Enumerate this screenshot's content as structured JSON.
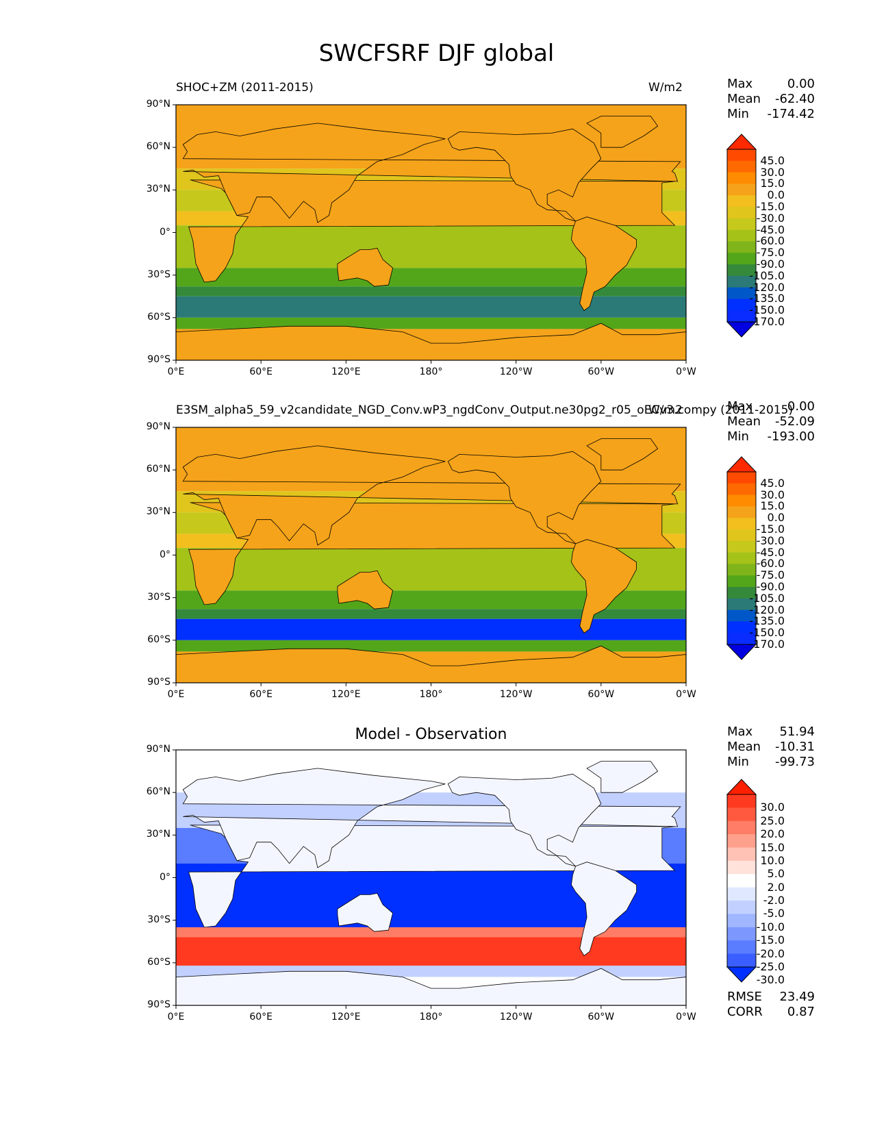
{
  "figure": {
    "title": "SWCFSRF DJF global"
  },
  "chart_data": [
    {
      "type": "heatmap",
      "title_left": "SHOC+ZM (2011-2015)",
      "title_right": "W/m2",
      "stats": {
        "max_label": "Max",
        "max": "0.00",
        "mean_label": "Mean",
        "mean": "-62.40",
        "min_label": "Min",
        "min": "-174.42"
      },
      "x_ticks": [
        "0°E",
        "60°E",
        "120°E",
        "180°",
        "120°W",
        "60°W",
        "0°W"
      ],
      "y_ticks": [
        "90°N",
        "60°N",
        "30°N",
        "0°",
        "30°S",
        "60°S",
        "90°S"
      ],
      "xlim": [
        0,
        360
      ],
      "ylim": [
        -90,
        90
      ],
      "colorbar_levels": [
        "45.0",
        "30.0",
        "15.0",
        "0.0",
        "-15.0",
        "-30.0",
        "-45.0",
        "-60.0",
        "-75.0",
        "-90.0",
        "-105.0",
        "-120.0",
        "-135.0",
        "-150.0",
        "-170.0"
      ],
      "colorbar_colors": [
        "#ff2a00",
        "#ff4a00",
        "#ff6a00",
        "#ff8c00",
        "#f5a31a",
        "#f2bf1f",
        "#e0c51d",
        "#c6c81c",
        "#a5c219",
        "#7fb51a",
        "#53a61a",
        "#348a3a",
        "#2b7a77",
        "#0058c8",
        "#0030ff",
        "#0a2cff",
        "#0000e0"
      ]
    },
    {
      "type": "heatmap",
      "title_left": "E3SM_alpha5_59_v2candidate_NGD_Conv.wP3_ngdConv_Output.ne30pg2_r05_oECv3.compy (2011-2015)",
      "title_right": "W/m2",
      "stats": {
        "max_label": "Max",
        "max": "0.00",
        "mean_label": "Mean",
        "mean": "-52.09",
        "min_label": "Min",
        "min": "-193.00"
      },
      "x_ticks": [
        "0°E",
        "60°E",
        "120°E",
        "180°",
        "120°W",
        "60°W",
        "0°W"
      ],
      "y_ticks": [
        "90°N",
        "60°N",
        "30°N",
        "0°",
        "30°S",
        "60°S",
        "90°S"
      ],
      "xlim": [
        0,
        360
      ],
      "ylim": [
        -90,
        90
      ],
      "colorbar_levels": [
        "45.0",
        "30.0",
        "15.0",
        "0.0",
        "-15.0",
        "-30.0",
        "-45.0",
        "-60.0",
        "-75.0",
        "-90.0",
        "-105.0",
        "-120.0",
        "-135.0",
        "-150.0",
        "-170.0"
      ],
      "colorbar_colors": [
        "#ff2a00",
        "#ff4a00",
        "#ff6a00",
        "#ff8c00",
        "#f5a31a",
        "#f2bf1f",
        "#e0c51d",
        "#c6c81c",
        "#a5c219",
        "#7fb51a",
        "#53a61a",
        "#348a3a",
        "#2b7a77",
        "#0058c8",
        "#0030ff",
        "#0a2cff",
        "#0000e0"
      ]
    },
    {
      "type": "heatmap",
      "title_center": "Model - Observation",
      "stats": {
        "max_label": "Max",
        "max": "51.94",
        "mean_label": "Mean",
        "mean": "-10.31",
        "min_label": "Min",
        "min": "-99.73"
      },
      "extra_stats": {
        "rmse_label": "RMSE",
        "rmse": "23.49",
        "corr_label": "CORR",
        "corr": "0.87"
      },
      "x_ticks": [
        "0°E",
        "60°E",
        "120°E",
        "180°",
        "120°W",
        "60°W",
        "0°W"
      ],
      "y_ticks": [
        "90°N",
        "60°N",
        "30°N",
        "0°",
        "30°S",
        "60°S",
        "90°S"
      ],
      "xlim": [
        0,
        360
      ],
      "ylim": [
        -90,
        90
      ],
      "colorbar_levels": [
        "30.0",
        "25.0",
        "20.0",
        "15.0",
        "10.0",
        "5.0",
        "2.0",
        "-2.0",
        "-5.0",
        "-10.0",
        "-15.0",
        "-20.0",
        "-25.0",
        "-30.0"
      ],
      "colorbar_colors": [
        "#ff2000",
        "#ff3a20",
        "#ff5a40",
        "#ff7d66",
        "#ffa08c",
        "#ffc2b4",
        "#ffe2da",
        "#ffffff",
        "#e0e8ff",
        "#c2d0ff",
        "#a0b6ff",
        "#7c98ff",
        "#5a7cff",
        "#3a5eff",
        "#0030ff"
      ]
    }
  ]
}
